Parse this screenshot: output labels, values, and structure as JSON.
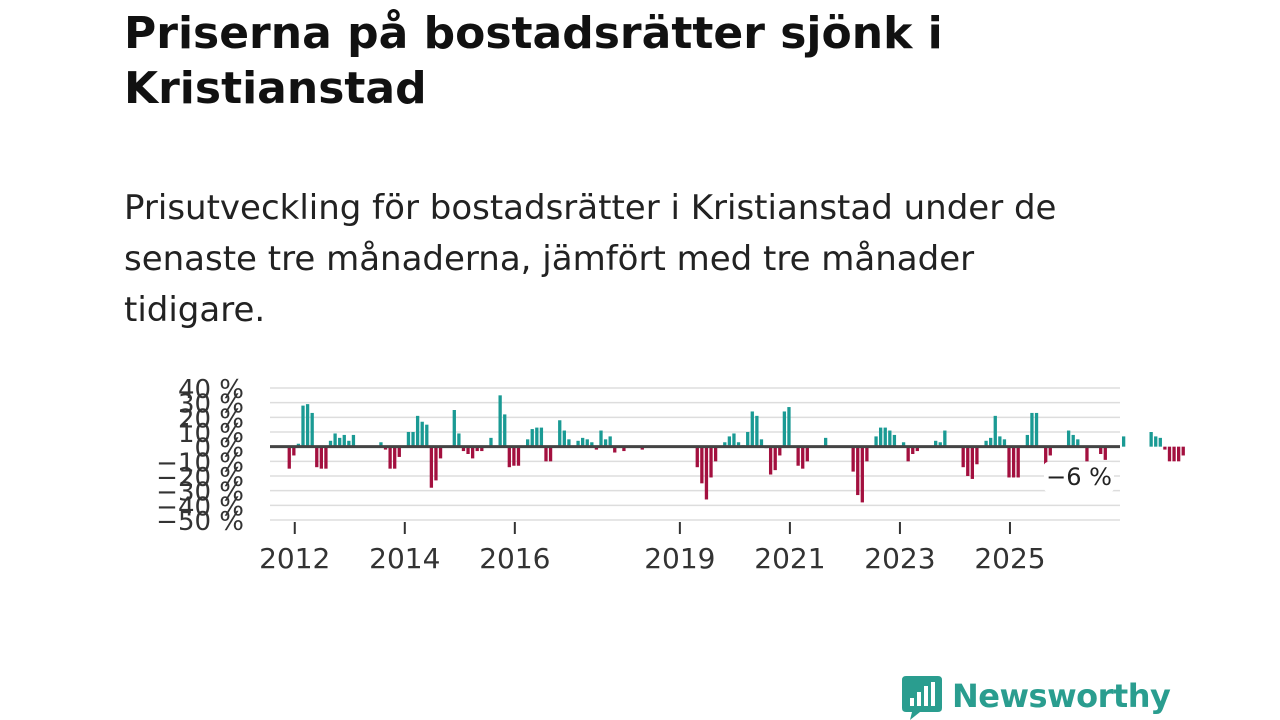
{
  "header": {
    "title": "Priserna på bostadsrätter sjönk i Kristianstad",
    "subtitle": "Prisutveckling för bostadsrätter i Kristianstad under de senaste tre månaderna, jämfört med tre månader tidigare."
  },
  "brand": {
    "name": "Newsworthy",
    "color": "#2a9d8f"
  },
  "colors": {
    "positive": "#1a9a94",
    "negative": "#a3103f",
    "grid": "#dddddd",
    "zero": "#444444"
  },
  "chart_data": {
    "type": "bar",
    "y_ticks": [
      "40 %",
      "30 %",
      "20 %",
      "10 %",
      "0 %",
      "−10 %",
      "−20 %",
      "−30 %",
      "−40 %",
      "−50 %"
    ],
    "y_tick_values": [
      40,
      30,
      20,
      10,
      0,
      -10,
      -20,
      -30,
      -40,
      -50
    ],
    "ylim": [
      -50,
      40
    ],
    "x_tick_labels": [
      "2012",
      "2014",
      "2016",
      "2019",
      "2021",
      "2023",
      "2025"
    ],
    "x_tick_values": [
      2012,
      2014,
      2016,
      2019,
      2021,
      2023,
      2025
    ],
    "xlim": [
      2011.55,
      2027.0
    ],
    "annotation": "−6 %",
    "series": [
      {
        "name": "Prisutveckling",
        "x_start": 2011.9,
        "x_step": 0.08333,
        "values": [
          -15,
          -6,
          2,
          28,
          29,
          23,
          -14,
          -15,
          -15,
          4,
          9,
          6,
          8,
          4,
          8,
          0,
          0,
          0,
          0,
          0,
          3,
          -2,
          -15,
          -15,
          -7,
          0,
          10,
          10,
          21,
          17,
          15,
          -28,
          -23,
          -8,
          0,
          0,
          25,
          9,
          -3,
          -5,
          -8,
          -3,
          -3,
          0,
          6,
          0,
          35,
          22,
          -14,
          -13,
          -13,
          0,
          5,
          12,
          13,
          13,
          -10,
          -10,
          0,
          18,
          11,
          5,
          0,
          4,
          6,
          5,
          3,
          -2,
          11,
          5,
          7,
          -4,
          0,
          -3,
          0,
          0,
          0,
          -2,
          0,
          0,
          0,
          0,
          0,
          0,
          0,
          0,
          0,
          0,
          0,
          -14,
          -25,
          -36,
          -21,
          -10,
          0,
          3,
          7,
          9,
          3,
          1,
          10,
          24,
          21,
          5,
          -1,
          -19,
          -16,
          -6,
          24,
          27,
          0,
          -13,
          -15,
          -10,
          0,
          0,
          0,
          6,
          0,
          0,
          0,
          0,
          0,
          -17,
          -33,
          -38,
          -10,
          0,
          7,
          13,
          13,
          11,
          8,
          0,
          3,
          -10,
          -5,
          -3,
          0,
          0,
          0,
          4,
          3,
          11,
          0,
          0,
          0,
          -14,
          -20,
          -22,
          -12,
          0,
          4,
          6,
          21,
          7,
          5,
          -21,
          -21,
          -21,
          0,
          8,
          23,
          23,
          0,
          -12,
          -6,
          0,
          0,
          0,
          11,
          8,
          5,
          0,
          -10,
          0,
          0,
          -5,
          -9,
          0,
          0,
          0,
          7,
          0,
          0,
          0,
          0,
          0,
          10,
          7,
          6,
          -2,
          -10,
          -10,
          -10,
          -6
        ]
      }
    ]
  }
}
